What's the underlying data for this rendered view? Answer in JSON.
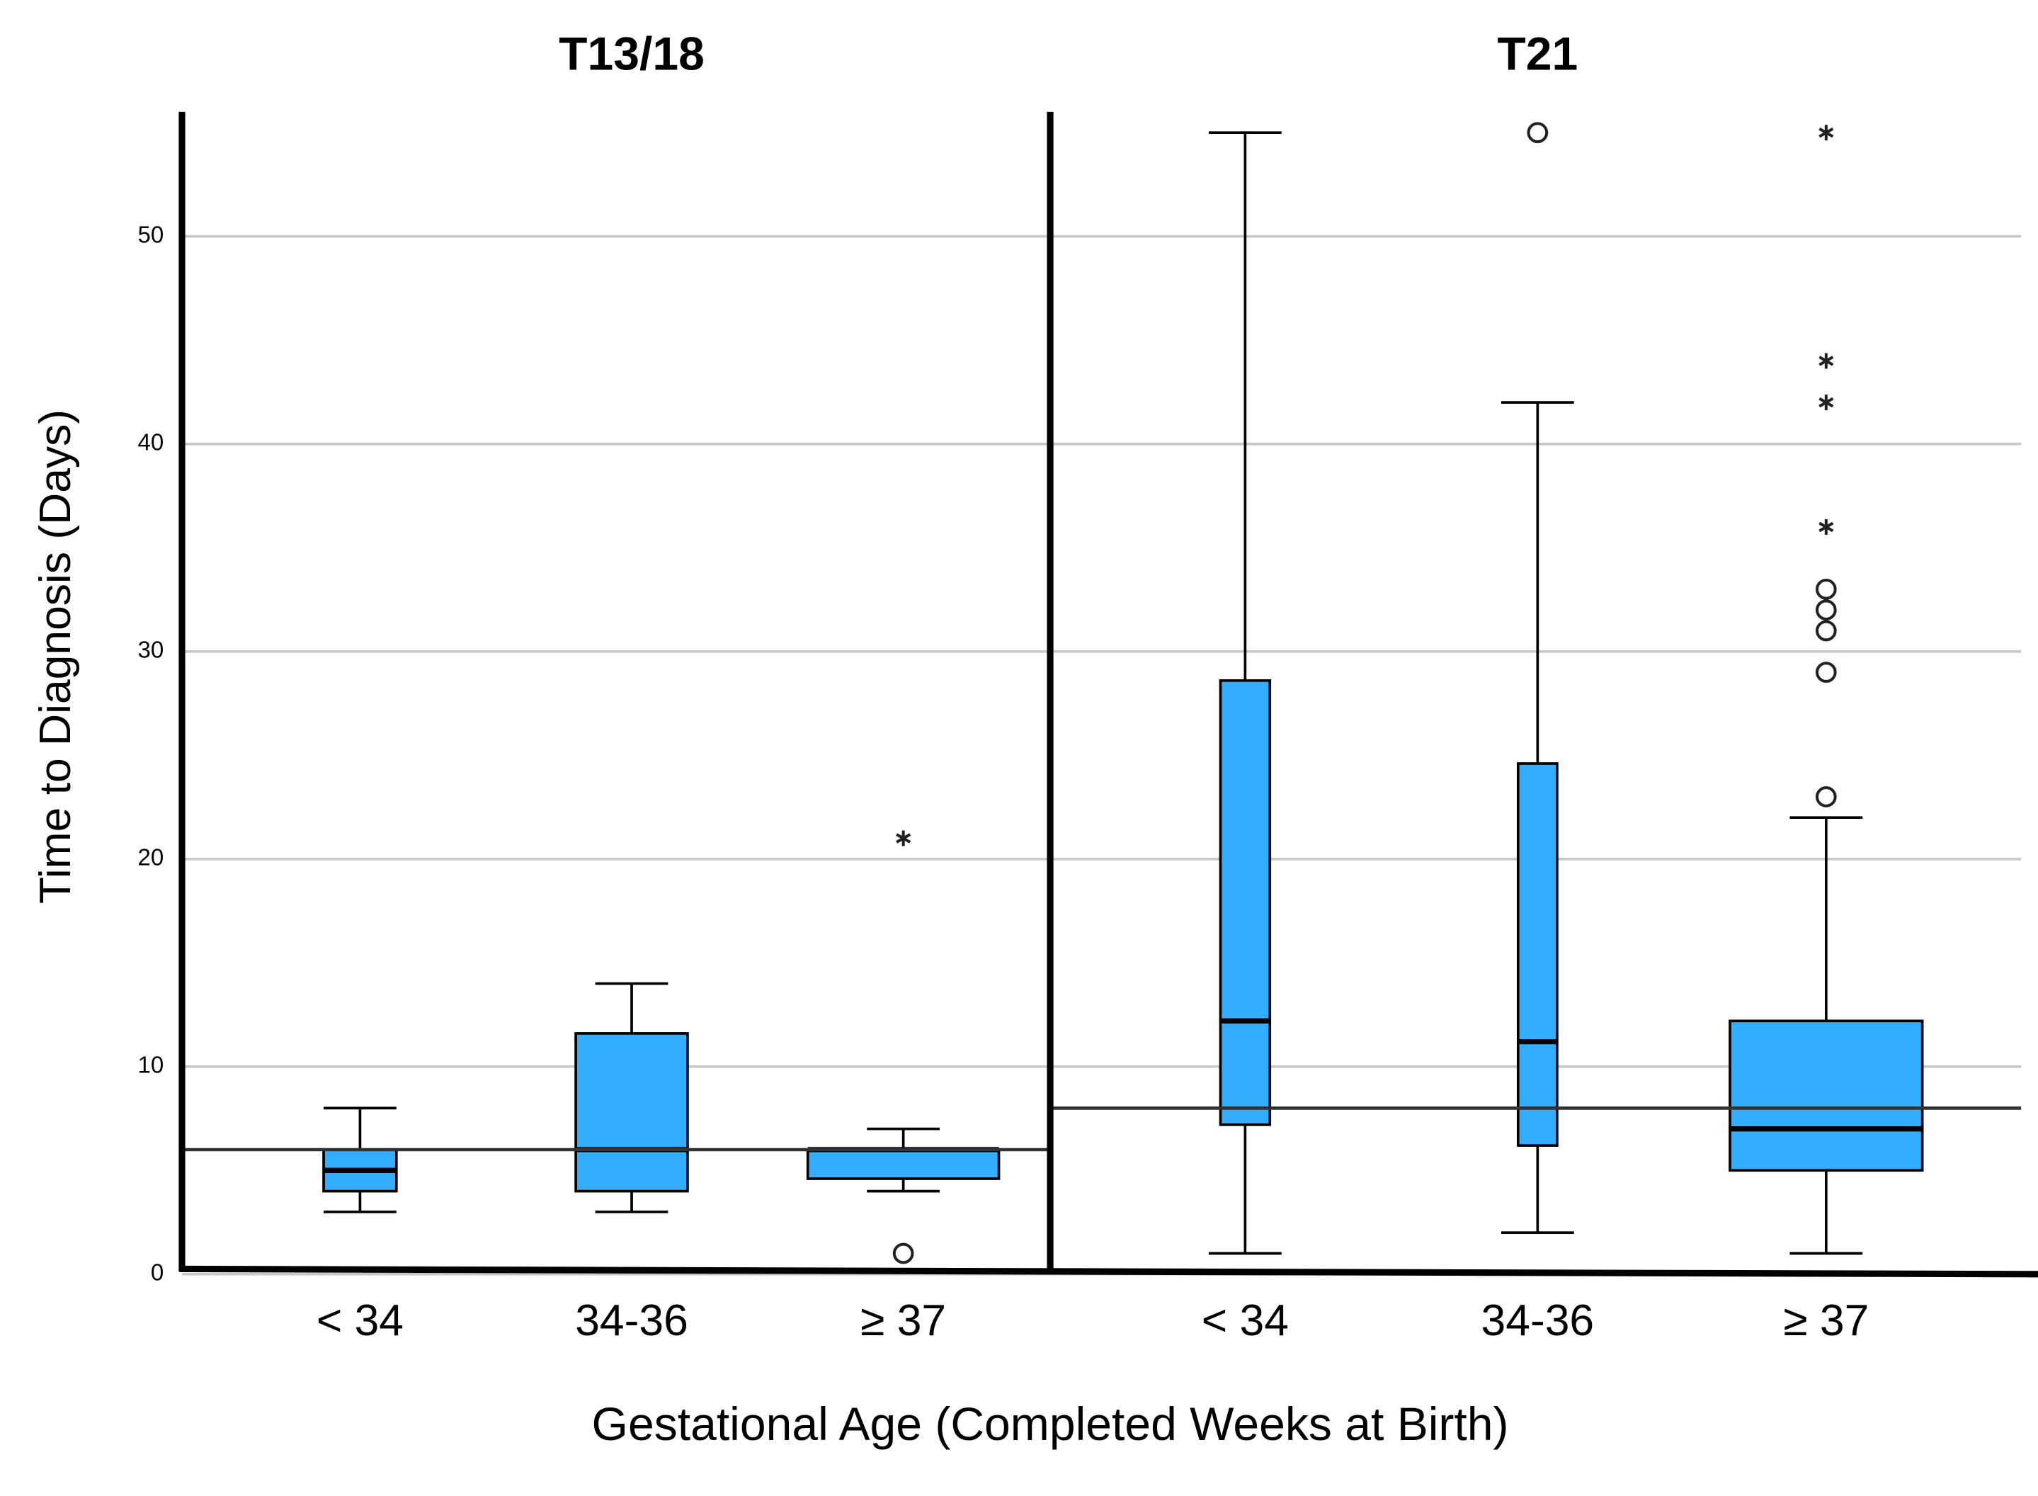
{
  "chart_data": {
    "type": "boxplot",
    "y_label": "Time to Diagnosis (Days)",
    "x_label": "Gestational Age (Completed Weeks at Birth)",
    "ylim": [
      0,
      56
    ],
    "yticks": [
      0,
      10,
      20,
      30,
      40,
      50
    ],
    "grid": true,
    "color": "#33adff",
    "panels": [
      {
        "title": "T13/18",
        "reference_line": 6,
        "categories": [
          "< 34",
          "34-36",
          "≥ 37"
        ],
        "boxes": [
          {
            "whislo": 3,
            "q1": 4,
            "med": 5,
            "q3": 6,
            "whishi": 8,
            "outliers": [],
            "extremes": []
          },
          {
            "whislo": 3,
            "q1": 4,
            "med": 6,
            "q3": 11.6,
            "whishi": 14,
            "outliers": [],
            "extremes": []
          },
          {
            "whislo": 4,
            "q1": 4.6,
            "med": 6,
            "q3": 6,
            "whishi": 7,
            "outliers": [
              1
            ],
            "extremes": [
              21
            ]
          }
        ]
      },
      {
        "title": "T21",
        "reference_line": 8,
        "categories": [
          "< 34",
          "34-36",
          "≥ 37"
        ],
        "boxes": [
          {
            "whislo": 1,
            "q1": 7.2,
            "med": 12.2,
            "q3": 28.6,
            "whishi": 55,
            "outliers": [],
            "extremes": []
          },
          {
            "whislo": 2,
            "q1": 6.2,
            "med": 11.2,
            "q3": 24.6,
            "whishi": 42,
            "outliers": [
              55
            ],
            "extremes": []
          },
          {
            "whislo": 1,
            "q1": 5,
            "med": 7,
            "q3": 12.2,
            "whishi": 22,
            "outliers": [
              23,
              29,
              31,
              32,
              33
            ],
            "extremes": [
              36,
              42,
              44,
              55
            ]
          }
        ]
      }
    ]
  }
}
